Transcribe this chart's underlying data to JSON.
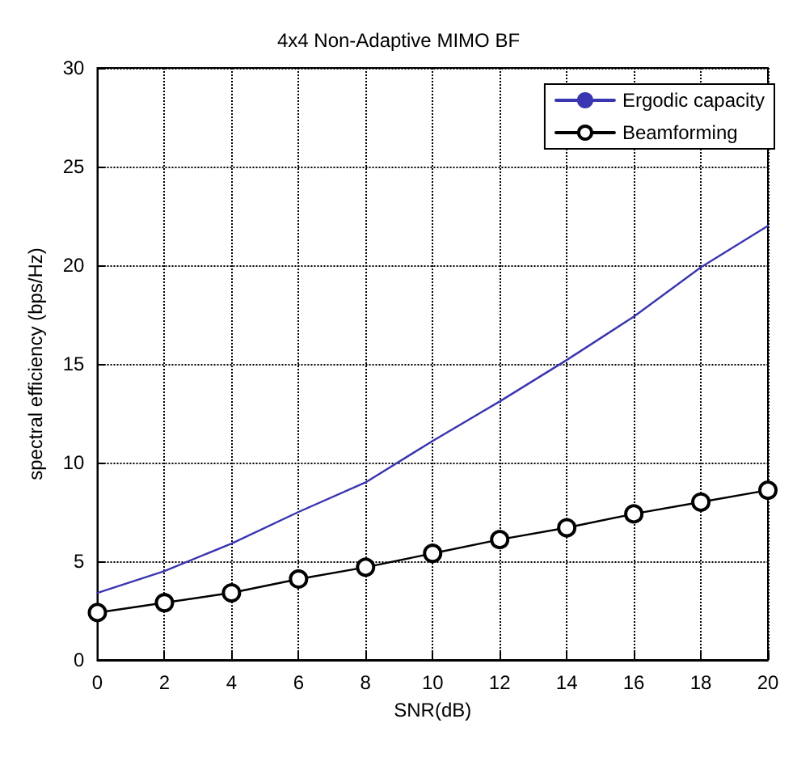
{
  "chart_data": {
    "type": "line",
    "title": "4x4 Non-Adaptive MIMO BF",
    "xlabel": "SNR(dB)",
    "ylabel": "spectral efficiency (bps/Hz)",
    "x": [
      0,
      2,
      4,
      6,
      8,
      10,
      12,
      14,
      16,
      18,
      20
    ],
    "series": [
      {
        "name": "Ergodic capacity",
        "color": "#3a35b0",
        "marker": "none",
        "values": [
          3.4,
          4.5,
          5.9,
          7.5,
          9.0,
          11.1,
          13.1,
          15.2,
          17.4,
          19.9,
          22.0
        ]
      },
      {
        "name": "Beamforming",
        "color": "#000000",
        "marker": "circle",
        "values": [
          2.4,
          2.9,
          3.4,
          4.1,
          4.7,
          5.4,
          6.1,
          6.7,
          7.4,
          8.0,
          8.6
        ]
      }
    ],
    "xlim": [
      0,
      20
    ],
    "xticks": [
      0,
      2,
      4,
      6,
      8,
      10,
      12,
      14,
      16,
      18,
      20
    ],
    "ylim": [
      0,
      30
    ],
    "yticks": [
      0,
      5,
      10,
      15,
      20,
      25,
      30
    ],
    "grid": true,
    "legend": "top right",
    "line_style": "solid"
  }
}
